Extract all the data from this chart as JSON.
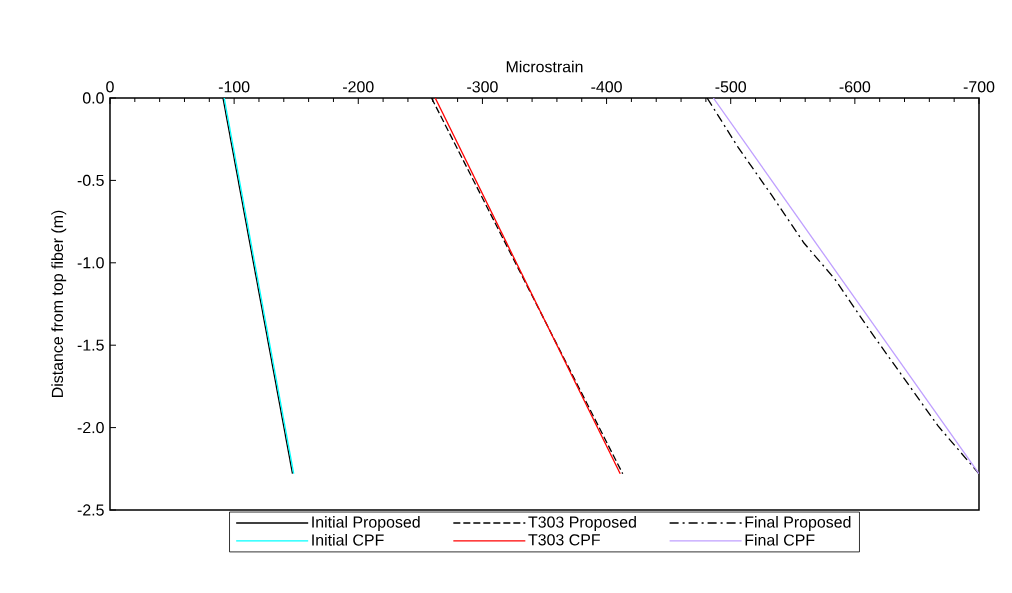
{
  "chart_data": {
    "type": "line",
    "xlabel": "Microstrain",
    "ylabel": "Distance from top fiber (m)",
    "xlim": [
      0,
      -700
    ],
    "xticks": [
      0,
      -100,
      -200,
      -300,
      -400,
      -500,
      -600,
      -700
    ],
    "ylim": [
      -2.5,
      0
    ],
    "yticks": [
      {
        "value": 0,
        "label": "0.0"
      },
      {
        "value": -0.5,
        "label": "-0.5"
      },
      {
        "value": -1,
        "label": "-1.0"
      },
      {
        "value": -1.5,
        "label": "-1.5"
      },
      {
        "value": -2,
        "label": "-2.0"
      },
      {
        "value": -2.5,
        "label": "-2.5"
      }
    ],
    "legend": "bottom",
    "marker": "none",
    "series": [
      {
        "name": "Initial Proposed",
        "color": "#000000",
        "line_style": "solid",
        "x": [
          -91,
          -147
        ],
        "values": [
          0,
          -2.28
        ]
      },
      {
        "name": "T303 Proposed",
        "color": "#000000",
        "line_style": "dashed",
        "x": [
          -259,
          -413
        ],
        "values": [
          0,
          -2.28
        ]
      },
      {
        "name": "Final Proposed",
        "color": "#000000",
        "line_style": "dashdot",
        "x": [
          -481,
          -506,
          -533,
          -559,
          -584,
          -612,
          -667,
          -700
        ],
        "values": [
          0,
          -0.3,
          -0.59,
          -0.88,
          -1.1,
          -1.41,
          -1.99,
          -2.28
        ]
      },
      {
        "name": "Initial CPF",
        "color": "#00ffff",
        "line_style": "solid",
        "x": [
          -92,
          -148
        ],
        "values": [
          0,
          -2.28
        ]
      },
      {
        "name": "T303 CPF",
        "color": "#ff0000",
        "line_style": "solid",
        "x": [
          -262,
          -411
        ],
        "values": [
          0,
          -2.28
        ]
      },
      {
        "name": "Final CPF",
        "color": "#bf9fff",
        "line_style": "solid",
        "x": [
          -486,
          -700
        ],
        "values": [
          0,
          -2.28
        ]
      }
    ]
  }
}
